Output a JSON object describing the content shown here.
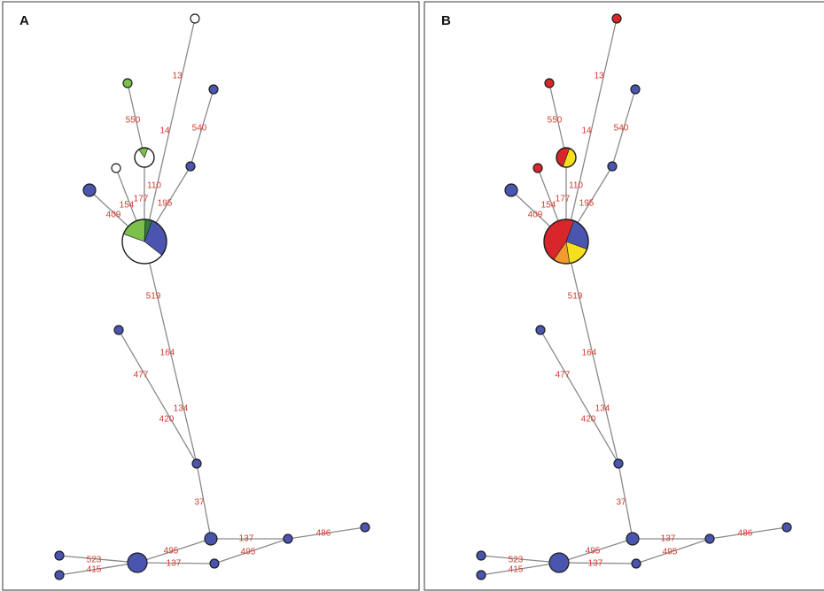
{
  "panels": [
    {
      "id": "a",
      "letter": "A",
      "node_colors": {
        "blue": "#4a55b0",
        "white": "#ffffff",
        "green": "#7cc04a",
        "darkgreen": "#2e7d3a"
      },
      "node_fills": {
        "top": "white",
        "green_leaf": "green",
        "mid_small": "white",
        "left_white": "white",
        "left_big": "blue",
        "n_b5": "blue",
        "n_b3": "blue",
        "pie_center_slices": [
          {
            "color": "blue",
            "fraction": 0.3
          },
          {
            "color": "white",
            "fraction": 0.45
          },
          {
            "color": "green",
            "fraction": 0.2
          },
          {
            "color": "darkgreen",
            "fraction": 0.05
          }
        ],
        "small_pie_slices": [
          {
            "color": "white",
            "fraction": 0.85
          },
          {
            "color": "green",
            "fraction": 0.15
          }
        ]
      }
    },
    {
      "id": "b",
      "letter": "B",
      "node_colors": {
        "blue": "#4a55b0",
        "red": "#d8262a",
        "yellow": "#f5e020",
        "orange": "#f29a2e"
      },
      "node_fills": {
        "top": "red",
        "green_leaf": "red",
        "mid_small": "red",
        "left_white": "red",
        "left_big": "blue",
        "n_b5": "blue",
        "n_b3": "blue",
        "pie_center_slices": [
          {
            "color": "blue",
            "fraction": 0.25
          },
          {
            "color": "yellow",
            "fraction": 0.17
          },
          {
            "color": "orange",
            "fraction": 0.12
          },
          {
            "color": "red",
            "fraction": 0.46
          }
        ],
        "small_pie_slices": [
          {
            "color": "yellow",
            "fraction": 0.5
          },
          {
            "color": "red",
            "fraction": 0.5
          }
        ]
      }
    }
  ],
  "edge_labels": {
    "e13": "13",
    "e14": "14",
    "e550": "550",
    "e540": "540",
    "e110": "110",
    "e177": "177",
    "e154": "154",
    "e409": "409",
    "e195": "195",
    "e519": "519",
    "e164": "164",
    "e477": "477",
    "e134": "134",
    "e420": "420",
    "e37": "37",
    "e137a": "137",
    "e486": "486",
    "e495a": "495",
    "e495b": "495",
    "e137b": "137",
    "e523": "523",
    "e415": "415"
  }
}
